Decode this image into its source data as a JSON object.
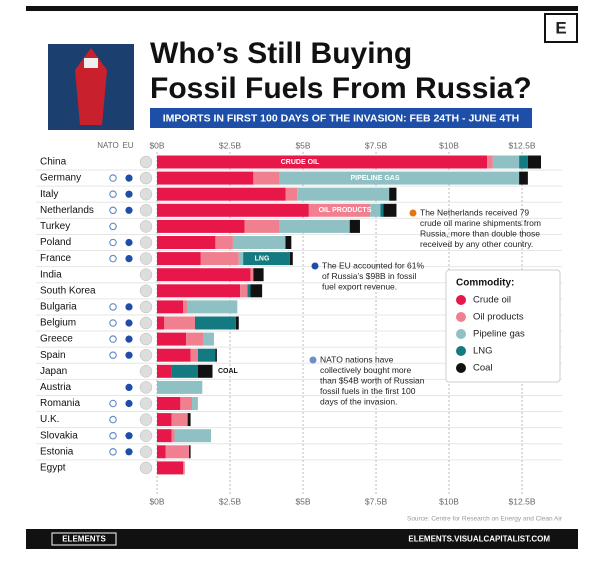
{
  "chart_data": {
    "type": "stacked-bar-horizontal",
    "title_lines": [
      "Who’s Still Buying",
      "Fossil Fuels From Russia?"
    ],
    "subtitle": "IMPORTS IN FIRST 100 DAYS OF THE INVASION:  FEB 24TH - JUNE 4TH",
    "logo": "E",
    "column_heads": [
      "NATO",
      "EU"
    ],
    "categories": [
      "China",
      "Germany",
      "Italy",
      "Netherlands",
      "Turkey",
      "Poland",
      "France",
      "India",
      "South Korea",
      "Bulgaria",
      "Belgium",
      "Greece",
      "Spain",
      "Japan",
      "Austria",
      "Romania",
      "U.K.",
      "Slovakia",
      "Estonia",
      "Egypt"
    ],
    "nato": [
      false,
      true,
      true,
      true,
      true,
      true,
      true,
      false,
      false,
      true,
      true,
      true,
      true,
      false,
      false,
      true,
      true,
      true,
      true,
      false
    ],
    "eu": [
      false,
      true,
      true,
      true,
      false,
      true,
      true,
      false,
      false,
      true,
      true,
      true,
      true,
      false,
      true,
      true,
      false,
      true,
      true,
      false
    ],
    "series": [
      {
        "name": "Crude oil",
        "color": "#e8174a",
        "values": [
          11.3,
          3.3,
          4.4,
          5.2,
          3.0,
          2.0,
          1.5,
          3.2,
          2.85,
          0.9,
          0.25,
          1.0,
          1.15,
          0.5,
          null,
          0.8,
          0.5,
          0.5,
          0.3,
          0.9
        ]
      },
      {
        "name": "Oil products",
        "color": "#f0808f",
        "values": [
          0.2,
          0.9,
          0.4,
          2.1,
          1.2,
          0.6,
          1.3,
          0.1,
          0.25,
          0.15,
          1.05,
          0.6,
          0.25,
          null,
          null,
          0.4,
          0.55,
          0.1,
          0.8,
          0.05
        ]
      },
      {
        "name": "Pipeline gas",
        "color": "#8fc1c4",
        "values": [
          0.9,
          8.2,
          3.15,
          0.35,
          2.4,
          1.8,
          0.15,
          null,
          null,
          1.7,
          null,
          0.35,
          null,
          null,
          1.55,
          0.2,
          null,
          1.25,
          null,
          null
        ]
      },
      {
        "name": "LNG",
        "color": "#127a80",
        "values": [
          0.3,
          null,
          null,
          0.1,
          null,
          null,
          1.6,
          null,
          0.1,
          null,
          1.4,
          null,
          0.6,
          0.9,
          null,
          null,
          null,
          null,
          null,
          null
        ]
      },
      {
        "name": "Coal",
        "color": "#111111",
        "values": [
          0.45,
          0.3,
          0.25,
          0.45,
          0.35,
          0.2,
          0.1,
          0.35,
          0.4,
          null,
          0.1,
          null,
          0.05,
          0.5,
          null,
          null,
          0.1,
          null,
          0.05,
          null
        ]
      }
    ],
    "bar_labels": [
      "CRUDE OIL",
      "PIPELINE GAS",
      "OIL PRODUCTS",
      "LNG",
      "COAL"
    ],
    "xlim": [
      0,
      13.8
    ],
    "xticks": [
      {
        "value": 0,
        "label": "$0B"
      },
      {
        "value": 2.5,
        "label": "$2.5B"
      },
      {
        "value": 5,
        "label": "$5B"
      },
      {
        "value": 7.5,
        "label": "$7.5B"
      },
      {
        "value": 10,
        "label": "$10B"
      },
      {
        "value": 12.5,
        "label": "$12.5B"
      }
    ],
    "grid": true,
    "legend": "right",
    "legend_title": "Commodity:",
    "annotations": [
      [
        "The Netherlands received 79",
        "crude oil marine shipments from",
        "Russia, more than double those",
        "received by any other country."
      ],
      [
        "The EU accounted for 61%",
        "of Russia’s $98B in fossil",
        "fuel export revenue."
      ],
      [
        "NATO nations have",
        "collectively bought more",
        "than $54B worth of Russian",
        "fossil fuels in the first 100",
        "days of the invasion."
      ]
    ],
    "source": "Source: Centre for Research on Energy and Clean Air",
    "footer_left": "ELEMENTS",
    "footer_right": "ELEMENTS.VISUALCAPITALIST.COM"
  }
}
